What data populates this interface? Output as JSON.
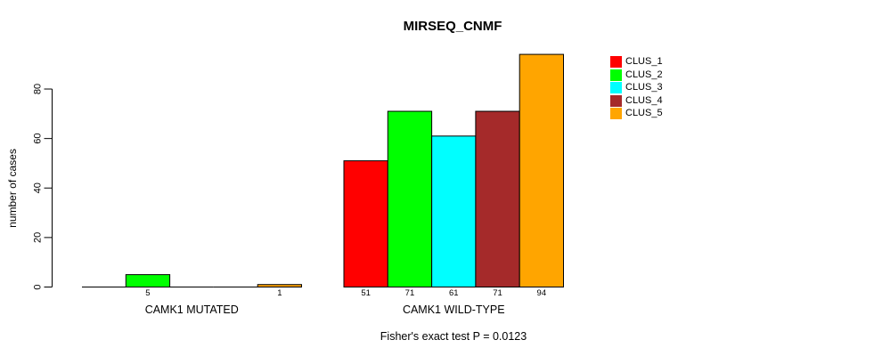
{
  "chart_data": {
    "type": "bar",
    "title": "MIRSEQ_CNMF",
    "ylabel": "number of cases",
    "xlabel": "",
    "annotation": "Fisher's exact test P = 0.0123",
    "yticks": [
      0,
      20,
      40,
      60,
      80
    ],
    "ylim": [
      0,
      94
    ],
    "grid": false,
    "legend_position": "right",
    "bar_border_color": "#000000",
    "categories": [
      "CAMK1 MUTATED",
      "CAMK1 WILD-TYPE"
    ],
    "series": [
      {
        "name": "CLUS_1",
        "color": "#FF0000",
        "values": [
          0,
          51
        ]
      },
      {
        "name": "CLUS_2",
        "color": "#00FF00",
        "values": [
          5,
          71
        ]
      },
      {
        "name": "CLUS_3",
        "color": "#00FFFF",
        "values": [
          0,
          61
        ]
      },
      {
        "name": "CLUS_4",
        "color": "#A52A2A",
        "values": [
          0,
          71
        ]
      },
      {
        "name": "CLUS_5",
        "color": "#FFA500",
        "values": [
          1,
          94
        ]
      }
    ],
    "bar_value_labels": {
      "CAMK1 MUTATED": [
        "5",
        "1"
      ],
      "CAMK1 WILD-TYPE": [
        "51",
        "71",
        "61",
        "71",
        "94"
      ]
    }
  }
}
